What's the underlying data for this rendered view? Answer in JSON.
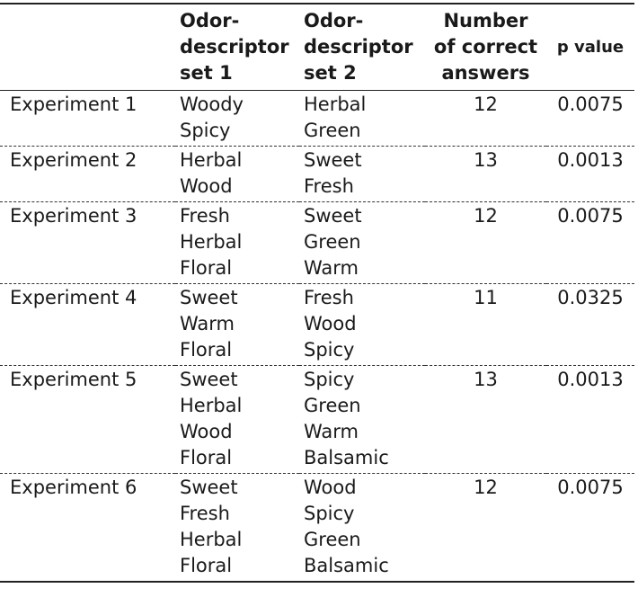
{
  "table": {
    "headers": {
      "experiment": "",
      "set1": [
        "Odor-",
        "descriptor",
        "set 1"
      ],
      "set2": [
        "Odor-",
        "descriptor",
        "set 2"
      ],
      "correct": [
        "Number",
        "of correct",
        "answers"
      ],
      "pvalue": "p value"
    },
    "rows": [
      {
        "experiment": "Experiment 1",
        "set1": [
          "Woody",
          "Spicy"
        ],
        "set2": [
          "Herbal",
          "Green"
        ],
        "correct": "12",
        "pvalue": "0.0075"
      },
      {
        "experiment": "Experiment 2",
        "set1": [
          "Herbal",
          "Wood"
        ],
        "set2": [
          "Sweet",
          "Fresh"
        ],
        "correct": "13",
        "pvalue": "0.0013"
      },
      {
        "experiment": "Experiment 3",
        "set1": [
          "Fresh",
          "Herbal",
          "Floral"
        ],
        "set2": [
          "Sweet",
          "Green",
          "Warm"
        ],
        "correct": "12",
        "pvalue": "0.0075"
      },
      {
        "experiment": "Experiment 4",
        "set1": [
          "Sweet",
          "Warm",
          "Floral"
        ],
        "set2": [
          "Fresh",
          "Wood",
          "Spicy"
        ],
        "correct": "11",
        "pvalue": "0.0325"
      },
      {
        "experiment": "Experiment 5",
        "set1": [
          "Sweet",
          "Herbal",
          "Wood",
          "Floral"
        ],
        "set2": [
          "Spicy",
          "Green",
          "Warm",
          "Balsamic"
        ],
        "correct": "13",
        "pvalue": "0.0013"
      },
      {
        "experiment": "Experiment 6",
        "set1": [
          "Sweet",
          "Fresh",
          "Herbal",
          "Floral"
        ],
        "set2": [
          "Wood",
          "Spicy",
          "Green",
          "Balsamic"
        ],
        "correct": "12",
        "pvalue": "0.0075"
      }
    ]
  }
}
